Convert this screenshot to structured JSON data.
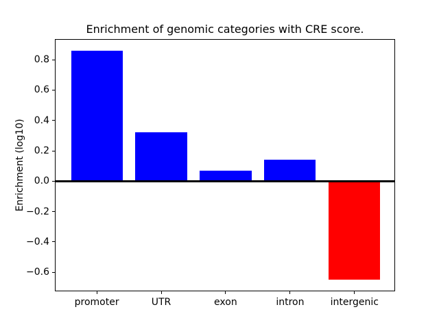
{
  "chart_data": {
    "type": "bar",
    "title": "Enrichment of genomic categories with CRE score.",
    "ylabel": "Enrichment (log10)",
    "xlabel": "",
    "categories": [
      "promoter",
      "UTR",
      "exon",
      "intron",
      "intergenic"
    ],
    "values": [
      0.86,
      0.32,
      0.07,
      0.14,
      -0.65
    ],
    "bar_colors": [
      "#0000ff",
      "#0000ff",
      "#0000ff",
      "#0000ff",
      "#ff0000"
    ],
    "positive_color": "#0000ff",
    "negative_color": "#ff0000",
    "bar_width": 0.8,
    "yticks": [
      0.8,
      0.6,
      0.4,
      0.2,
      0.0,
      -0.2,
      -0.4,
      -0.6
    ],
    "ylim": [
      -0.726,
      0.936
    ],
    "xlim": [
      -0.65,
      4.63
    ],
    "grid": false,
    "legend": null,
    "zero_line": {
      "y": 0.0,
      "color": "#000000",
      "linewidth": 2
    },
    "axes_color": "#000000",
    "background_color": "#ffffff"
  }
}
